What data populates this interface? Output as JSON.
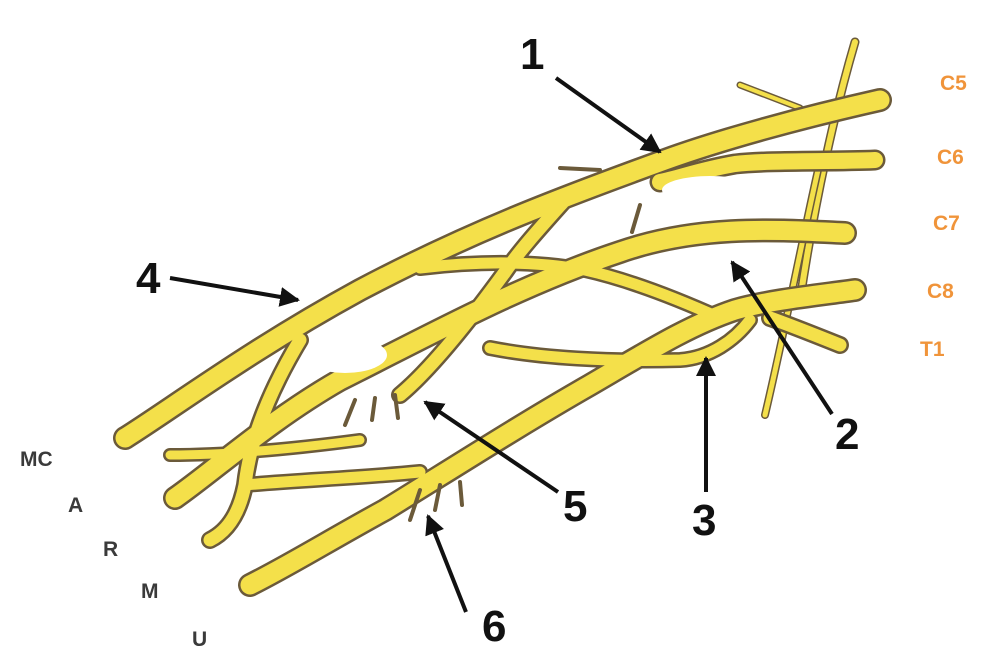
{
  "roots": [
    {
      "label": "C5"
    },
    {
      "label": "C6"
    },
    {
      "label": "C7"
    },
    {
      "label": "C8"
    },
    {
      "label": "T1"
    }
  ],
  "terminals": [
    {
      "label": "MC"
    },
    {
      "label": "A"
    },
    {
      "label": "R"
    },
    {
      "label": "M"
    },
    {
      "label": "U"
    }
  ],
  "callouts": [
    {
      "label": "1"
    },
    {
      "label": "2"
    },
    {
      "label": "3"
    },
    {
      "label": "4"
    },
    {
      "label": "5"
    },
    {
      "label": "6"
    }
  ],
  "colors": {
    "nerve_fill": "#f4e04a",
    "nerve_outline": "#6b5a3a",
    "root_label": "#f0943a",
    "terminal_label": "#3a3a3a",
    "arrow": "#111111"
  }
}
